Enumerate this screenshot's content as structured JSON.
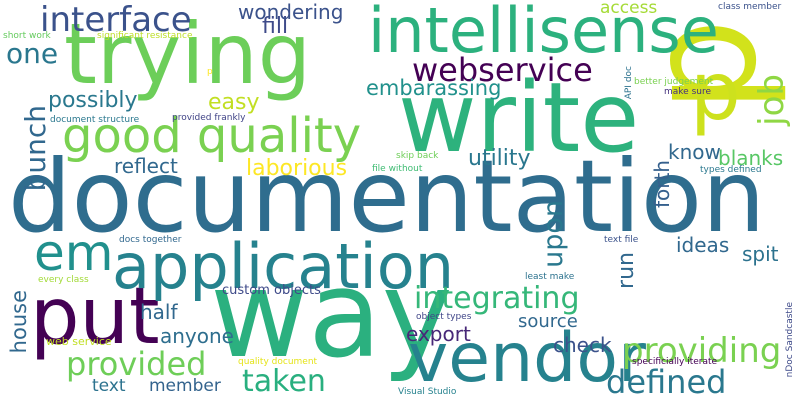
{
  "background": "#ffffff",
  "words": [
    {
      "text": "documentation",
      "color": "#2f6d8e",
      "vertical": false
    },
    {
      "text": "p",
      "color": "#d2e21b",
      "vertical": true
    },
    {
      "text": "way",
      "color": "#2bb07f",
      "vertical": false
    },
    {
      "text": "trying",
      "color": "#6cce59",
      "vertical": false
    },
    {
      "text": "intellisense",
      "color": "#2cb17e",
      "vertical": false
    },
    {
      "text": "write",
      "color": "#2db27d",
      "vertical": false
    },
    {
      "text": "put",
      "color": "#440154",
      "vertical": false
    },
    {
      "text": "application",
      "color": "#26828e",
      "vertical": false
    },
    {
      "text": "vendor",
      "color": "#26828e",
      "vertical": false
    },
    {
      "text": "p",
      "color": "#cde11d",
      "vertical": false
    },
    {
      "text": "em",
      "color": "#21908d",
      "vertical": false
    },
    {
      "text": "good quality",
      "color": "#7ad151",
      "vertical": false
    },
    {
      "text": "interface",
      "color": "#3b528b",
      "vertical": false
    },
    {
      "text": "webservice",
      "color": "#440154",
      "vertical": false
    },
    {
      "text": "integrating",
      "color": "#35b779",
      "vertical": false
    },
    {
      "text": "providing",
      "color": "#7ad151",
      "vertical": false
    },
    {
      "text": "defined",
      "color": "#2a788e",
      "vertical": false
    },
    {
      "text": "provided",
      "color": "#6ece58",
      "vertical": false
    },
    {
      "text": "taken",
      "color": "#29af7f",
      "vertical": false
    },
    {
      "text": "job",
      "color": "#8fd744",
      "vertical": true
    },
    {
      "text": "bunch",
      "color": "#31688e",
      "vertical": true
    },
    {
      "text": "one",
      "color": "#2a778e",
      "vertical": false
    },
    {
      "text": "possibly",
      "color": "#2a788e",
      "vertical": false
    },
    {
      "text": "embarassing",
      "color": "#21918c",
      "vertical": false
    },
    {
      "text": "utility",
      "color": "#2a778e",
      "vertical": false
    },
    {
      "text": "upon",
      "color": "#2a788e",
      "vertical": true
    },
    {
      "text": "reflect",
      "color": "#31688e",
      "vertical": false
    },
    {
      "text": "laborious",
      "color": "#fde725",
      "vertical": false
    },
    {
      "text": "easy",
      "color": "#c2df23",
      "vertical": false
    },
    {
      "text": "fill",
      "color": "#3e4a89",
      "vertical": false
    },
    {
      "text": "wondering",
      "color": "#3b528b",
      "vertical": false
    },
    {
      "text": "know",
      "color": "#31688e",
      "vertical": false
    },
    {
      "text": "blanks",
      "color": "#58c765",
      "vertical": false
    },
    {
      "text": "forth",
      "color": "#35608d",
      "vertical": true
    },
    {
      "text": "ideas",
      "color": "#31688e",
      "vertical": false
    },
    {
      "text": "spit",
      "color": "#2c728e",
      "vertical": false
    },
    {
      "text": "run",
      "color": "#31688e",
      "vertical": true
    },
    {
      "text": "half",
      "color": "#31688e",
      "vertical": false
    },
    {
      "text": "anyone",
      "color": "#2e6e8e",
      "vertical": false
    },
    {
      "text": "export",
      "color": "#482878",
      "vertical": false
    },
    {
      "text": "source",
      "color": "#31688e",
      "vertical": false
    },
    {
      "text": "check",
      "color": "#3b528b",
      "vertical": false
    },
    {
      "text": "house",
      "color": "#31688e",
      "vertical": true
    },
    {
      "text": "text",
      "color": "#2c728e",
      "vertical": false
    },
    {
      "text": "member",
      "color": "#33638d",
      "vertical": false
    },
    {
      "text": "access",
      "color": "#a5db36",
      "vertical": false
    },
    {
      "text": "custom objects",
      "color": "#3e4a89",
      "vertical": false
    },
    {
      "text": "class member",
      "color": "#3b528b",
      "vertical": false
    },
    {
      "text": "short work",
      "color": "#65cb5e",
      "vertical": false
    },
    {
      "text": "significant resistance",
      "color": "#bddf26",
      "vertical": false
    },
    {
      "text": "better judgement",
      "color": "#7ad151",
      "vertical": false
    },
    {
      "text": "API doc",
      "color": "#2c728e",
      "vertical": true
    },
    {
      "text": "make sure",
      "color": "#46327e",
      "vertical": false
    },
    {
      "text": "document structure",
      "color": "#2a788e",
      "vertical": false
    },
    {
      "text": "provided frankly",
      "color": "#414487",
      "vertical": false
    },
    {
      "text": "skip back",
      "color": "#6ece58",
      "vertical": false
    },
    {
      "text": "file without",
      "color": "#3fbc73",
      "vertical": false
    },
    {
      "text": "types defined",
      "color": "#2a788e",
      "vertical": false
    },
    {
      "text": "docs together",
      "color": "#31688e",
      "vertical": false
    },
    {
      "text": "text file",
      "color": "#3b528b",
      "vertical": false
    },
    {
      "text": "every class",
      "color": "#a2da37",
      "vertical": false
    },
    {
      "text": "least make",
      "color": "#2c728e",
      "vertical": false
    },
    {
      "text": "web service",
      "color": "#c0df25",
      "vertical": false
    },
    {
      "text": "object types",
      "color": "#404688",
      "vertical": false
    },
    {
      "text": "nDoc Sandcastle",
      "color": "#3e4a89",
      "vertical": true
    },
    {
      "text": "quality document",
      "color": "#e5e419",
      "vertical": false
    },
    {
      "text": "specificially iterate",
      "color": "#440154",
      "vertical": false
    },
    {
      "text": "Visual Studio",
      "color": "#26828e",
      "vertical": false
    },
    {
      "text": "p",
      "color": "#fde725",
      "vertical": false
    }
  ]
}
